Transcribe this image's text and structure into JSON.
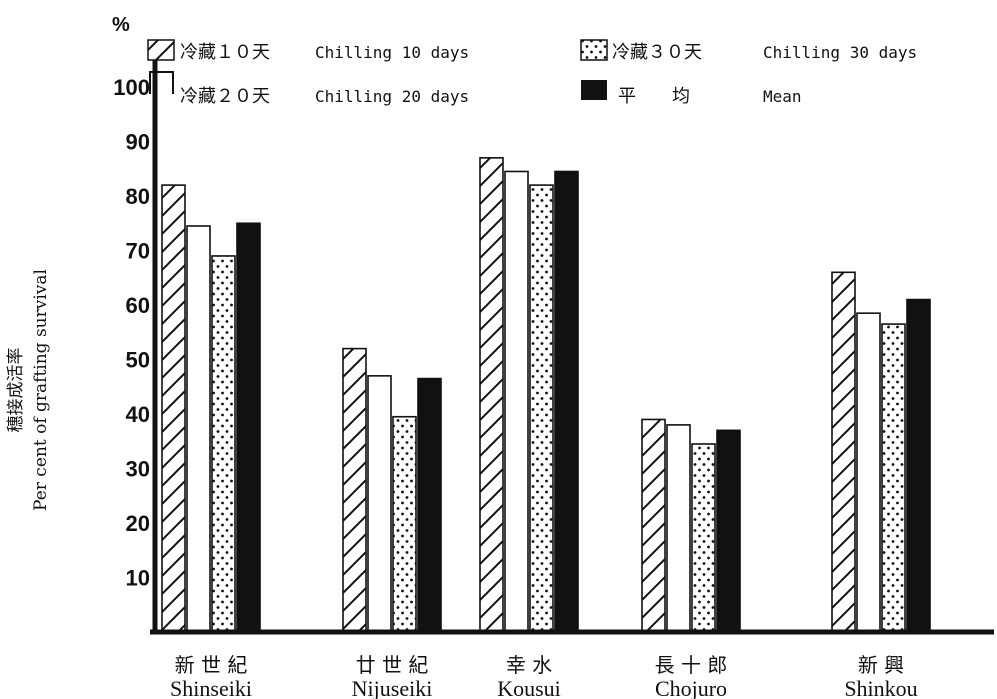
{
  "chart_data": {
    "type": "bar",
    "ylabel_jp": "穗接成活率",
    "ylabel_en": "Per cent of grafting survival",
    "y_unit": "%",
    "ylim": [
      0,
      100
    ],
    "y_ticks": [
      "10",
      "20",
      "30",
      "40",
      "50",
      "60",
      "70",
      "80",
      "90",
      "100"
    ],
    "categories": [
      {
        "jp": "新 世 紀",
        "en": "Shinseiki"
      },
      {
        "jp": "廿 世 紀",
        "en": "Nijuseiki"
      },
      {
        "jp": "幸   水",
        "en": "Kousui"
      },
      {
        "jp": "長 十 郎",
        "en": "Chojuro"
      },
      {
        "jp": "新   興",
        "en": "Shinkou"
      }
    ],
    "series": [
      {
        "name_jp": "冷藏１０天",
        "name_en": "Chilling 10 days",
        "pattern": "hatch",
        "values": [
          82,
          52,
          87,
          39,
          66
        ]
      },
      {
        "name_jp": "冷藏２０天",
        "name_en": "Chilling 20 days",
        "pattern": "empty",
        "values": [
          74.5,
          47,
          84.5,
          38,
          58.5
        ]
      },
      {
        "name_jp": "冷藏３０天",
        "name_en": "Chilling 30 days",
        "pattern": "dots",
        "values": [
          69,
          39.5,
          82,
          34.5,
          56.5
        ]
      },
      {
        "name_jp": "平　　均",
        "name_en": "Mean",
        "pattern": "solid",
        "values": [
          75,
          46.5,
          84.5,
          37,
          61
        ]
      }
    ],
    "legend_position": "top",
    "grid": false
  }
}
